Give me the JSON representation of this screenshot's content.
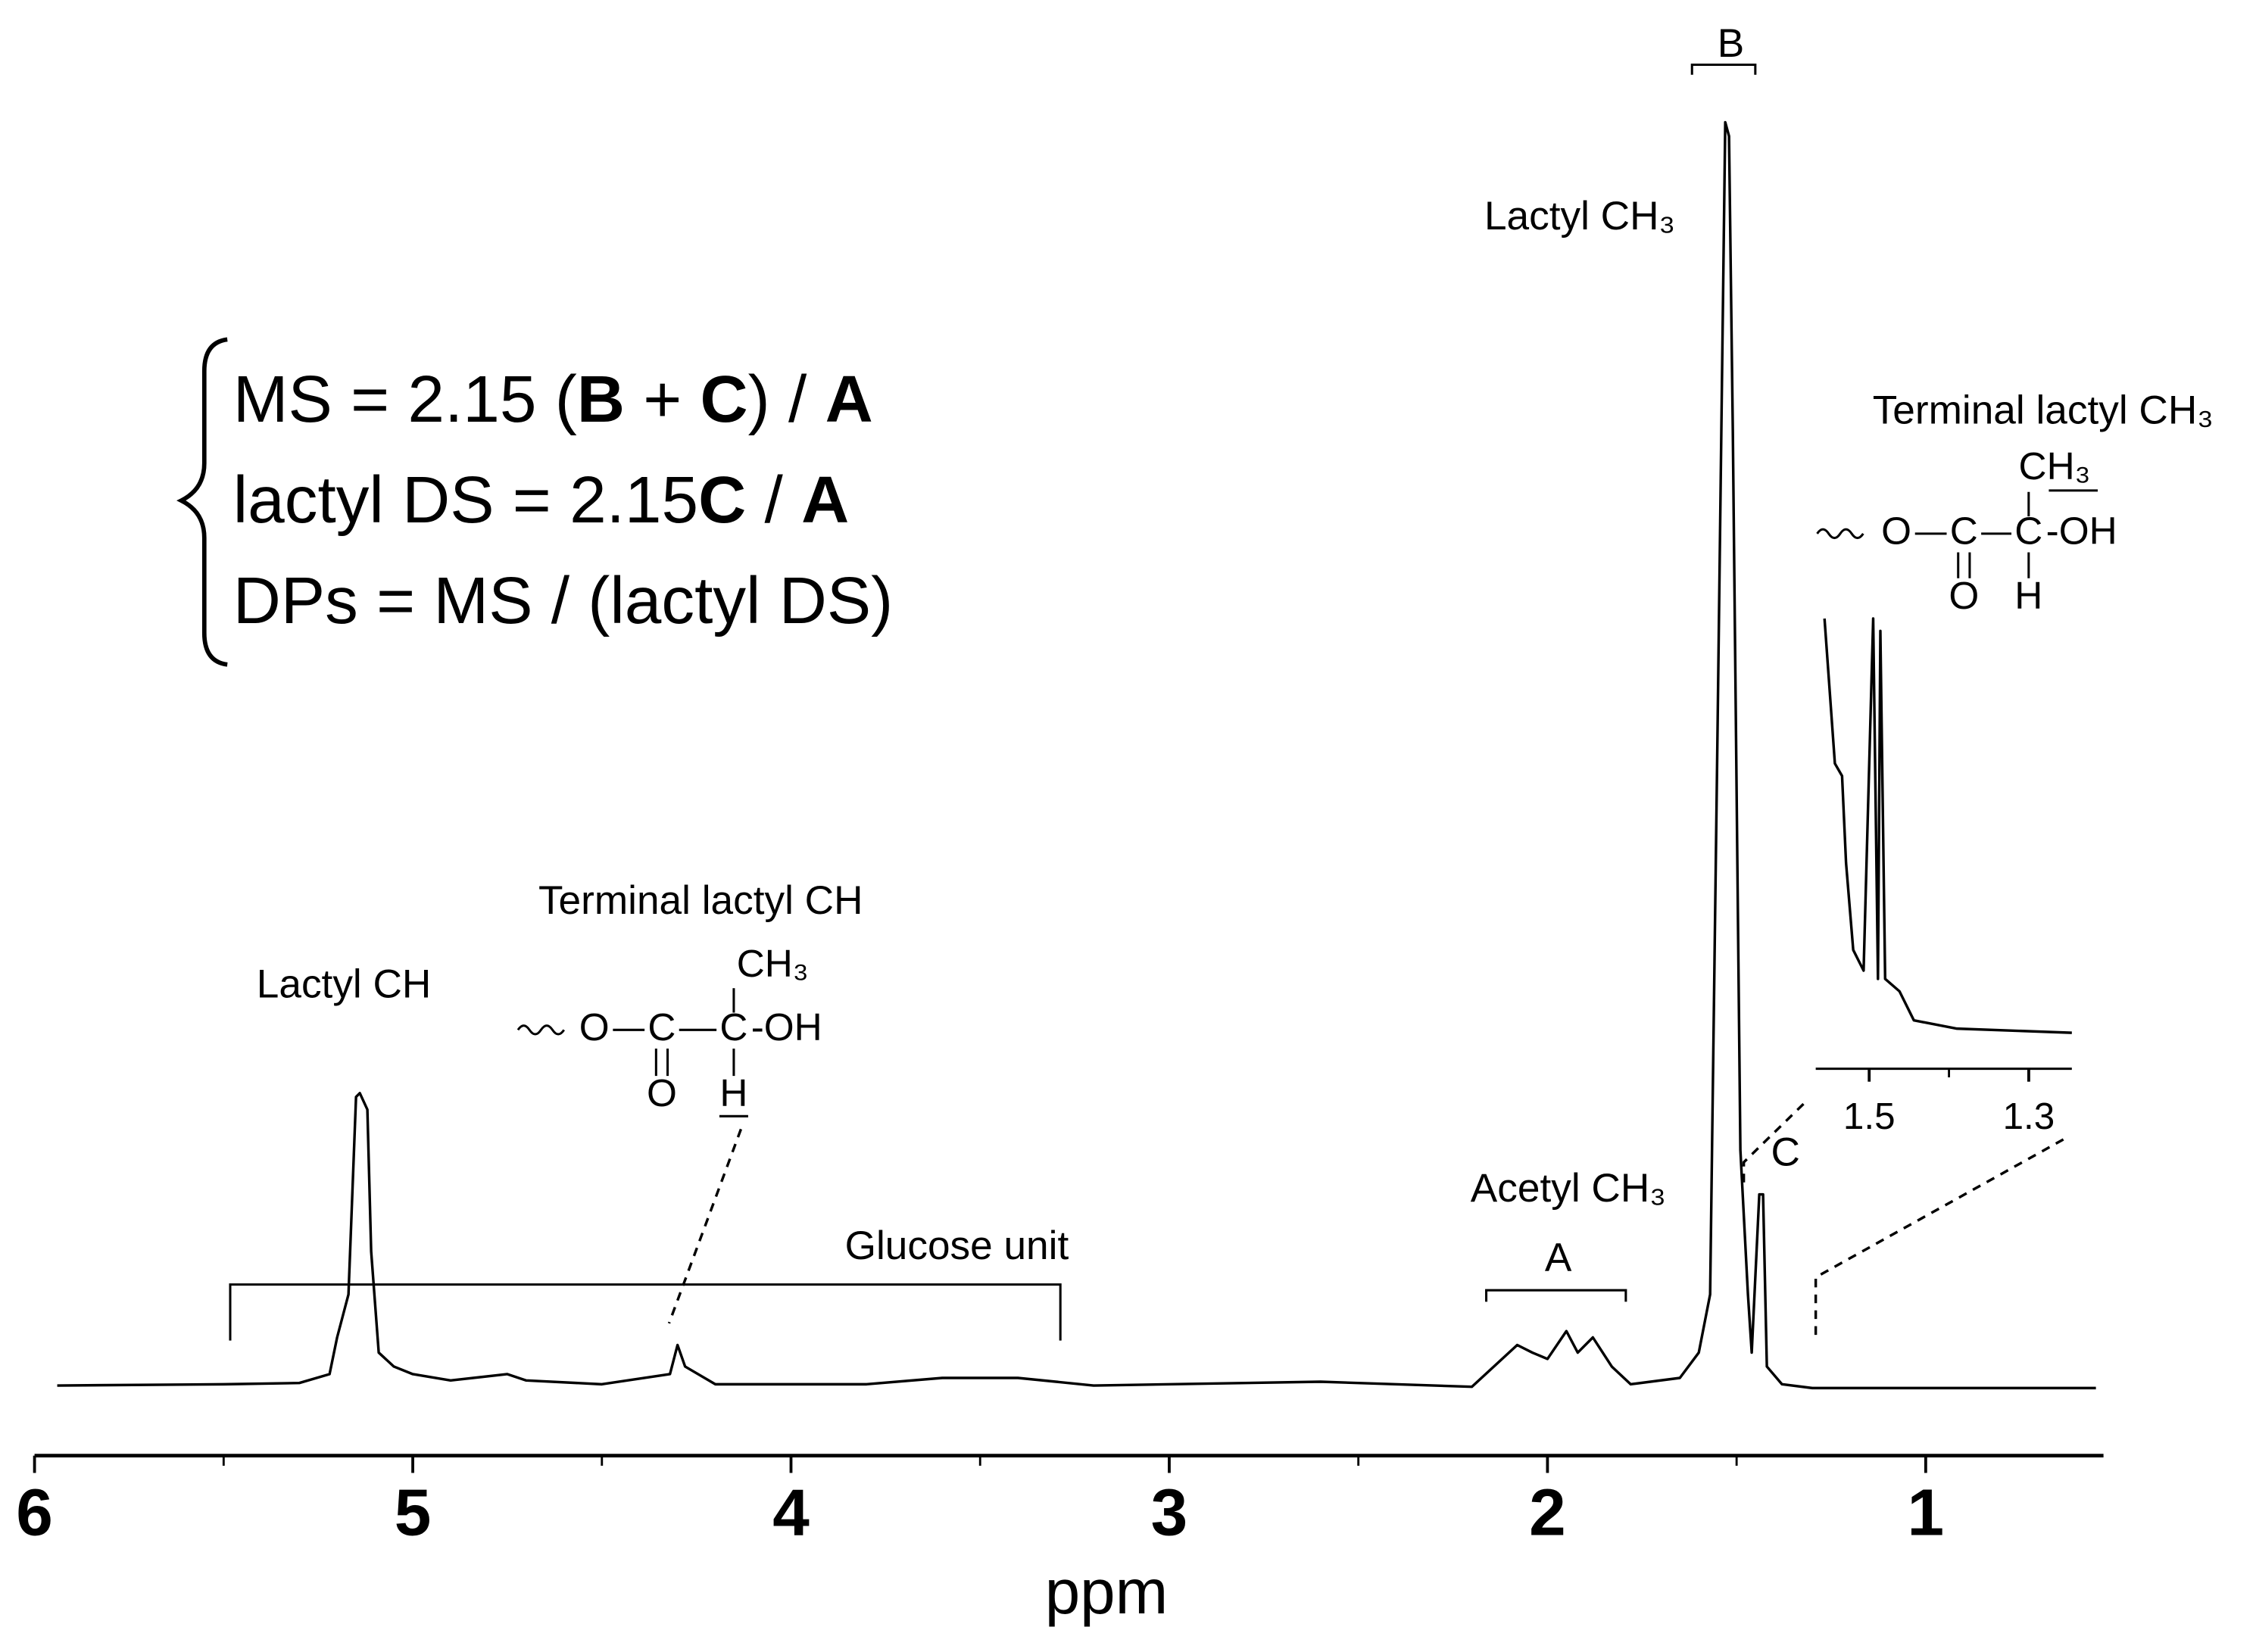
{
  "chart_data": [
    {
      "type": "line",
      "color": "#000000",
      "xlabel": "ppm",
      "xlim": [
        6,
        0.53
      ],
      "ylim": [
        0,
        100
      ],
      "xticks": [
        6,
        5,
        4,
        3,
        2,
        1
      ],
      "xminor": [
        5.5,
        4.5,
        3.5,
        2.5,
        1.5
      ],
      "x": [
        5.94,
        5.5,
        5.3,
        5.22,
        5.2,
        5.17,
        5.15,
        5.14,
        5.12,
        5.11,
        5.09,
        5.05,
        5.0,
        4.9,
        4.75,
        4.7,
        4.5,
        4.32,
        4.3,
        4.28,
        4.2,
        3.8,
        3.6,
        3.4,
        3.2,
        2.6,
        2.2,
        2.08,
        2.04,
        2.0,
        1.95,
        1.92,
        1.88,
        1.83,
        1.78,
        1.65,
        1.6,
        1.57,
        1.55,
        1.53,
        1.52,
        1.51,
        1.49,
        1.47,
        1.46,
        1.44,
        1.43,
        1.42,
        1.38,
        1.3,
        0.55
      ],
      "values": [
        0.2,
        0.3,
        0.4,
        1.1,
        4,
        7.4,
        23,
        23.3,
        22,
        10.8,
        2.8,
        1.7,
        1.1,
        0.6,
        1.1,
        0.6,
        0.3,
        1.1,
        3.4,
        1.7,
        0.3,
        0.3,
        0.8,
        0.8,
        0.2,
        0.5,
        0.1,
        3.4,
        2.8,
        2.3,
        4.5,
        2.8,
        4,
        1.7,
        0.3,
        0.8,
        2.8,
        7.4,
        52.8,
        100,
        98.9,
        75.6,
        18.8,
        7.4,
        2.8,
        15.3,
        15.3,
        1.7,
        0.3,
        0,
        0
      ]
    },
    {
      "type": "line",
      "color": "#000000",
      "xlim": [
        1.567,
        1.246
      ],
      "ylim": [
        0,
        10
      ],
      "xticks": [
        1.5,
        1.3
      ],
      "xminor": [
        1.4
      ],
      "x": [
        1.556,
        1.543,
        1.534,
        1.529,
        1.52,
        1.507,
        1.495,
        1.489,
        1.486,
        1.48,
        1.462,
        1.444,
        1.39,
        1.246
      ],
      "values": [
        10,
        6.5,
        6.2,
        4.1,
        2.0,
        1.5,
        10,
        1.3,
        9.7,
        1.3,
        1.0,
        0.3,
        0.1,
        0
      ]
    }
  ],
  "formula": [
    [
      {
        "text": "MS = 2.15 (",
        "bold": false
      },
      {
        "text": "B",
        "bold": true
      },
      {
        "text": " + ",
        "bold": false
      },
      {
        "text": "C",
        "bold": true
      },
      {
        "text": ") / ",
        "bold": false
      },
      {
        "text": "A",
        "bold": true
      }
    ],
    [
      {
        "text": "lactyl DS = 2.15",
        "bold": false
      },
      {
        "text": "C",
        "bold": true
      },
      {
        "text": " / ",
        "bold": false
      },
      {
        "text": "A",
        "bold": true
      }
    ],
    [
      {
        "text": "DPs = MS / (lactyl DS)",
        "bold": false
      }
    ]
  ],
  "annotations": {
    "lactyl_ch": "Lactyl CH",
    "lactyl_ch3": "Lactyl CH₃",
    "acetyl_ch3": "Acetyl CH₃",
    "glucose": "Glucose unit",
    "a": "A",
    "b": "B",
    "c": "C"
  },
  "structures": [
    {
      "title": "Terminal lactyl CH",
      "atoms": [
        "CH₃",
        "O",
        "C",
        "C",
        "-OH",
        "O",
        "H"
      ]
    },
    {
      "title": "Terminal lactyl CH₃",
      "atoms": [
        "CH₃",
        "O",
        "C",
        "C",
        "-OH",
        "O",
        "H"
      ]
    }
  ]
}
